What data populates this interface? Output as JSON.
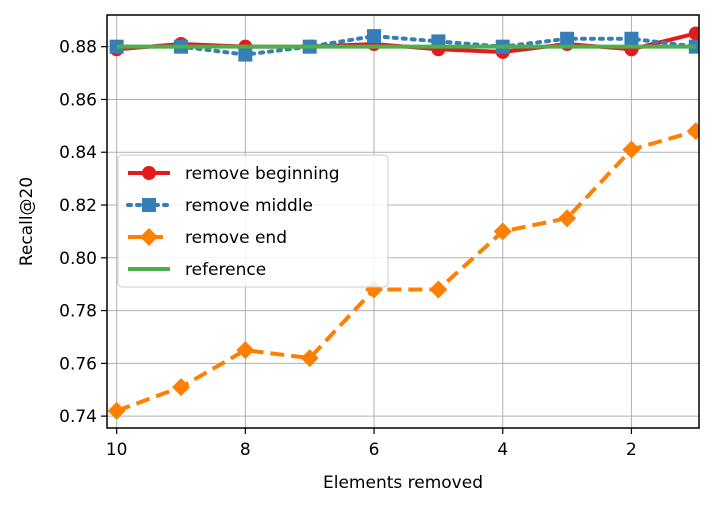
{
  "chart_data": {
    "type": "line",
    "title": "",
    "xlabel": "Elements removed",
    "ylabel": "Recall@20",
    "x": [
      10,
      9,
      8,
      7,
      6,
      5,
      4,
      3,
      2,
      1
    ],
    "x_ticks": [
      10,
      8,
      6,
      4,
      2
    ],
    "x_tick_labels": [
      "10",
      "8",
      "6",
      "4",
      "2"
    ],
    "x_inverted": true,
    "xlim": [
      10.15,
      0.95
    ],
    "ylim": [
      0.7355,
      0.892
    ],
    "y_ticks": [
      0.74,
      0.76,
      0.78,
      0.8,
      0.82,
      0.84,
      0.86,
      0.88
    ],
    "y_tick_labels": [
      "0.74",
      "0.76",
      "0.78",
      "0.80",
      "0.82",
      "0.84",
      "0.86",
      "0.88"
    ],
    "grid": true,
    "legend_position": "center-left",
    "series": [
      {
        "name": "remove beginning",
        "color": "#e41a1c",
        "line_style": "solid",
        "marker": "circle",
        "values": [
          0.879,
          0.881,
          0.88,
          0.88,
          0.881,
          0.879,
          0.878,
          0.881,
          0.879,
          0.885
        ]
      },
      {
        "name": "remove middle",
        "color": "#377eb8",
        "line_style": "dotted",
        "marker": "square",
        "values": [
          0.88,
          0.88,
          0.877,
          0.88,
          0.884,
          0.882,
          0.88,
          0.883,
          0.883,
          0.88
        ]
      },
      {
        "name": "remove end",
        "color": "#ff7f00",
        "line_style": "dashed",
        "marker": "diamond",
        "values": [
          0.742,
          0.751,
          0.765,
          0.762,
          0.788,
          0.788,
          0.81,
          0.815,
          0.841,
          0.848
        ]
      },
      {
        "name": "reference",
        "color": "#4daf4a",
        "line_style": "solid",
        "marker": "none",
        "values": [
          0.88,
          0.88,
          0.88,
          0.88,
          0.88,
          0.88,
          0.88,
          0.88,
          0.88,
          0.88
        ]
      }
    ]
  }
}
